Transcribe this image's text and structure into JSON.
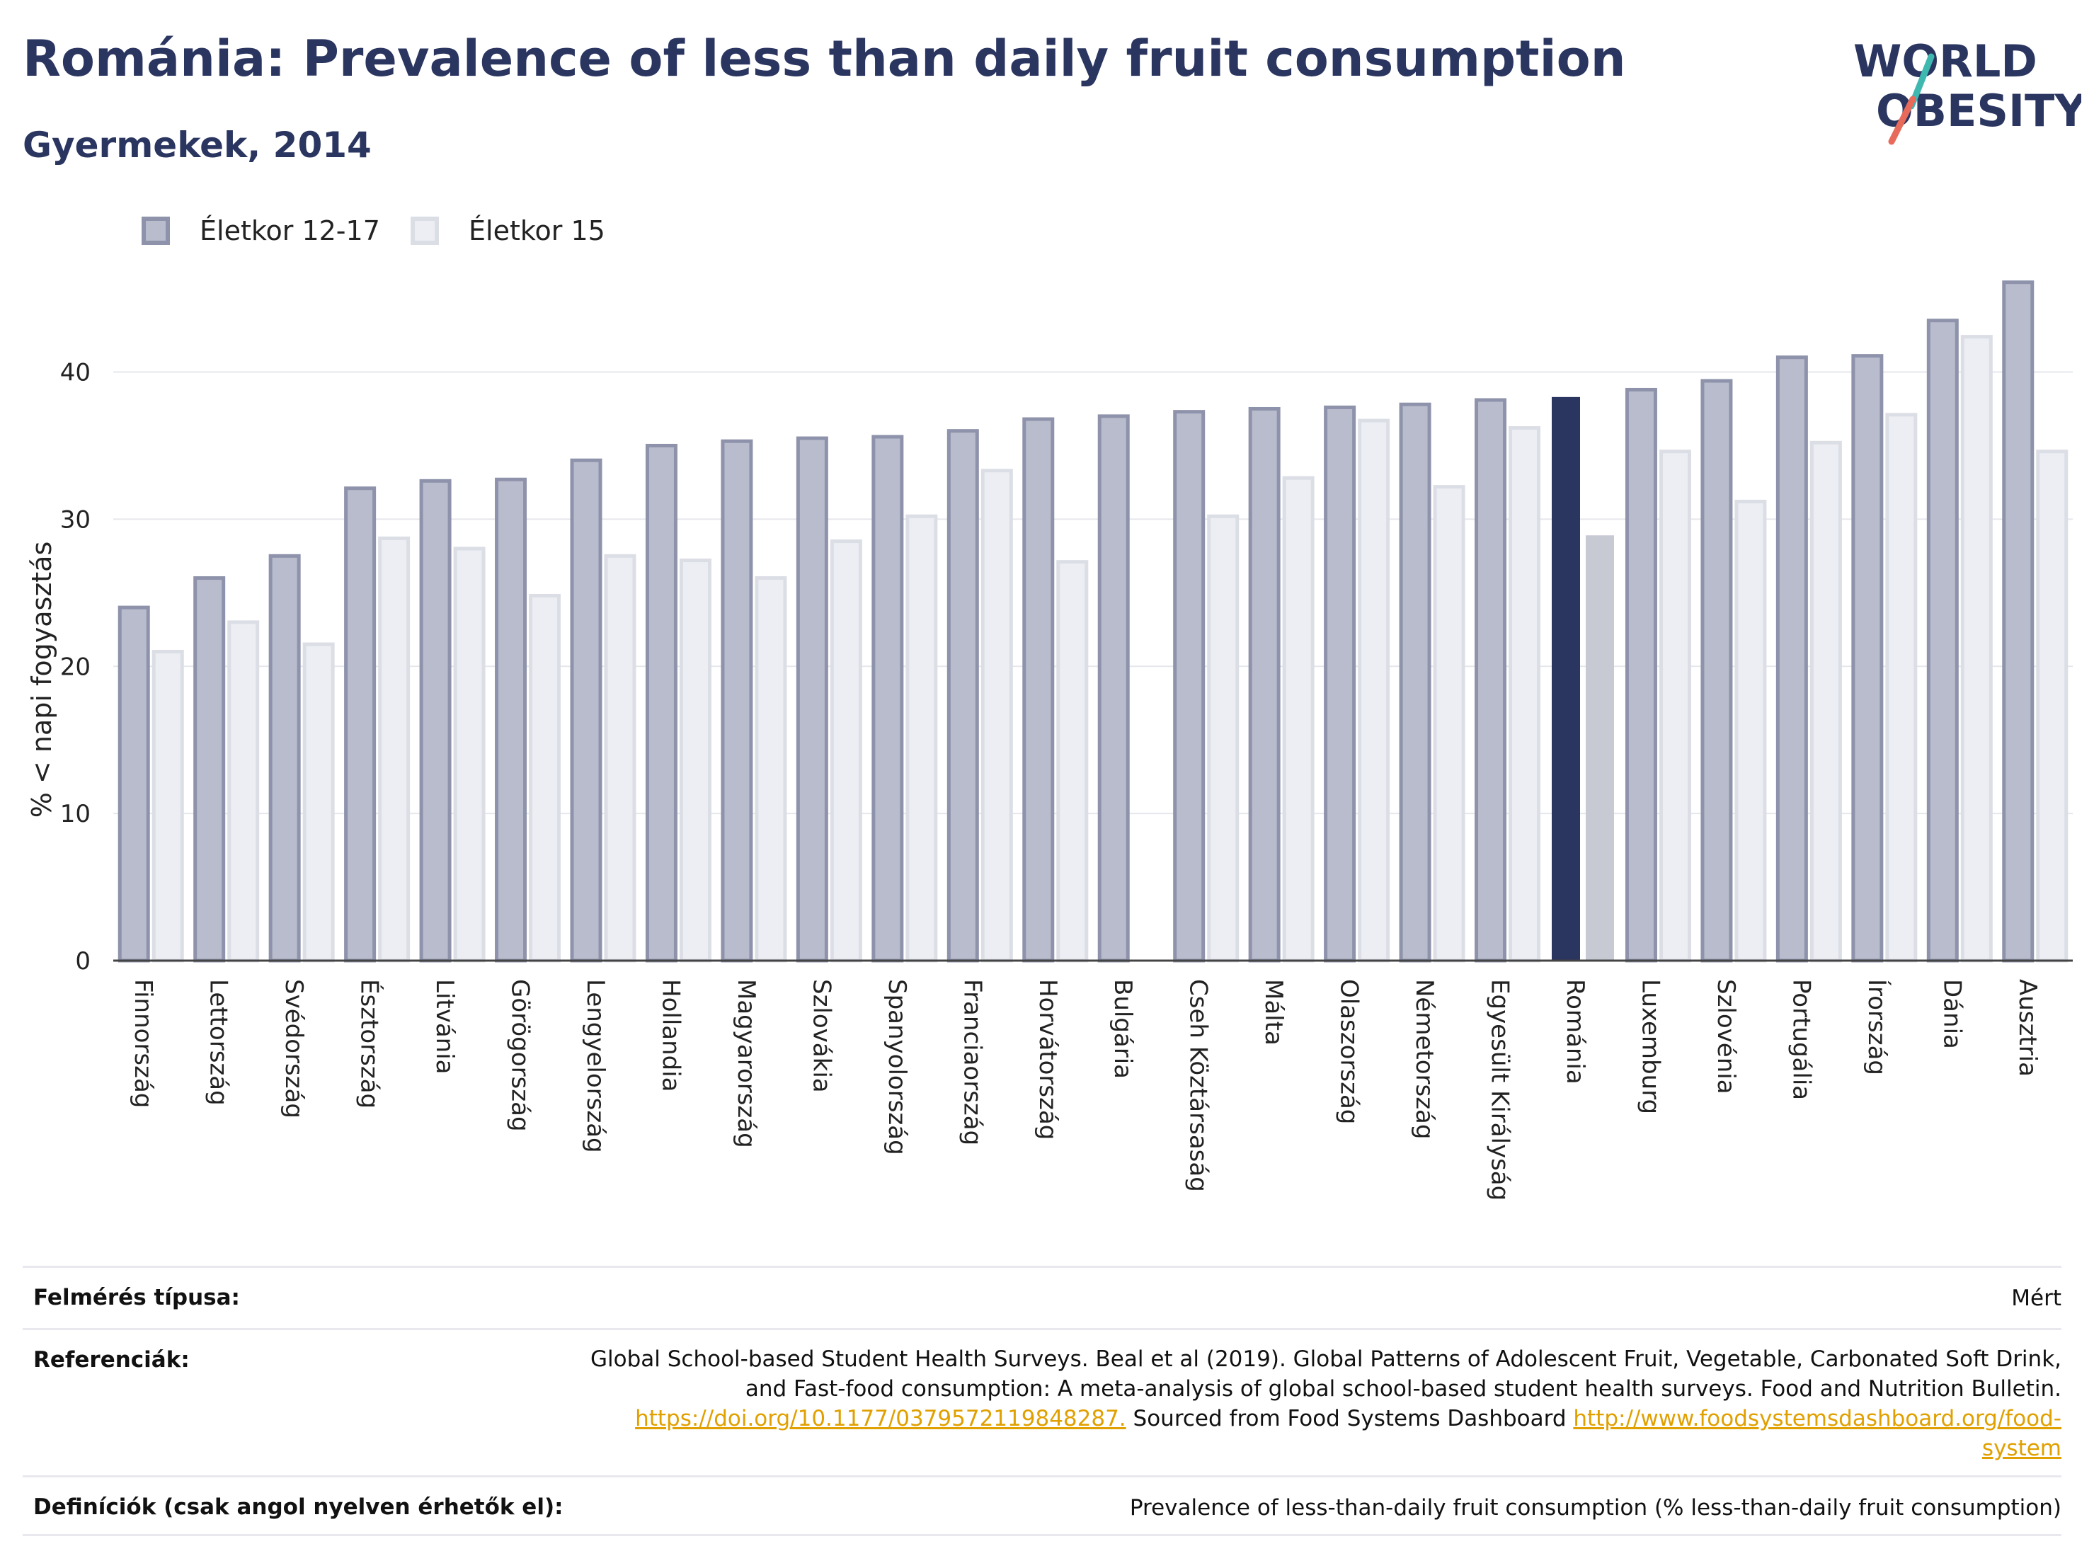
{
  "header": {
    "title": "Románia: Prevalence of less than daily fruit consumption",
    "subtitle": "Gyermekek, 2014"
  },
  "logo": {
    "line1": "WORLD",
    "line2": "OBESITY",
    "icon": "world-obesity-logo"
  },
  "colors": {
    "series1": "#b9bccc",
    "series1_border": "#8e93ab",
    "series2": "#eceef3",
    "series2_border": "#dcdee6",
    "highlight1": "#2a3560",
    "highlight2": "#c7c9d3",
    "title": "#2a3560",
    "link": "#e0a000"
  },
  "chart_data": {
    "type": "bar",
    "title": "Románia: Prevalence of less than daily fruit consumption",
    "subtitle": "Gyermekek, 2014",
    "ylabel": "% < napi fogyasztás",
    "xlabel": "",
    "ylim": [
      0,
      47
    ],
    "yticks": [
      0,
      10,
      20,
      30,
      40
    ],
    "grid": true,
    "legend_position": "top-left",
    "highlight_category": "Románia",
    "categories": [
      "Finnország",
      "Lettország",
      "Svédország",
      "Észtország",
      "Litvánia",
      "Görögország",
      "Lengyelország",
      "Hollandia",
      "Magyarország",
      "Szlovákia",
      "Spanyolország",
      "Franciaország",
      "Horvátország",
      "Bulgária",
      "Cseh Köztársaság",
      "Málta",
      "Olaszország",
      "Németország",
      "Egyesült Királyság",
      "Románia",
      "Luxemburg",
      "Szlovénia",
      "Portugália",
      "Írország",
      "Dánia",
      "Ausztria"
    ],
    "series": [
      {
        "name": "Életkor 12-17",
        "values": [
          24.0,
          26.0,
          27.5,
          32.1,
          32.6,
          32.7,
          34.0,
          35.0,
          35.3,
          35.5,
          35.6,
          36.0,
          36.8,
          37.0,
          37.3,
          37.5,
          37.6,
          37.8,
          38.1,
          38.3,
          38.8,
          39.4,
          41.0,
          41.1,
          43.5,
          46.1
        ]
      },
      {
        "name": "Életkor 15",
        "values": [
          21.0,
          23.0,
          21.5,
          28.7,
          28.0,
          24.8,
          27.5,
          27.2,
          26.0,
          28.5,
          30.2,
          33.3,
          27.1,
          null,
          30.2,
          32.8,
          36.7,
          32.2,
          36.2,
          28.9,
          34.6,
          31.2,
          35.2,
          37.1,
          42.4,
          34.6
        ]
      }
    ]
  },
  "meta": {
    "survey_label": "Felmérés típusa:",
    "survey_value": "Mért",
    "refs_label": "Referenciák:",
    "refs_line1": "Global School-based Student Health Surveys. Beal et al (2019). Global Patterns of Adolescent Fruit, Vegetable, Carbonated Soft Drink,",
    "refs_line2": "and Fast-food consumption: A meta-analysis of global school-based student health surveys. Food and Nutrition Bulletin.",
    "refs_link1": "https://doi.org/10.1177/0379572119848287.",
    "refs_mid": " Sourced from Food Systems Dashboard ",
    "refs_link2a": "http://www.foodsystemsdashboard.org/food-",
    "refs_link2b": "system",
    "defs_label": "Definíciók (csak angol nyelven érhetők el):",
    "defs_value": "Prevalence of less-than-daily fruit consumption (% less-than-daily fruit consumption)"
  }
}
